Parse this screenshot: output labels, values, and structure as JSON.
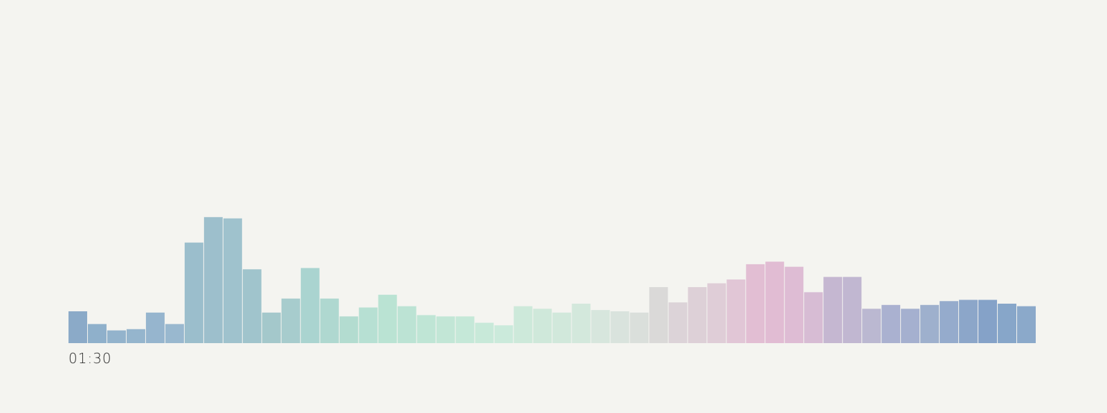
{
  "time_label": "01:30",
  "chart_data": {
    "type": "bar",
    "title": "",
    "xlabel": "",
    "ylabel": "",
    "grid": false,
    "legend": "none",
    "ylim": [
      0,
      100
    ],
    "values": [
      25,
      15,
      10,
      11,
      24,
      15,
      79,
      99,
      98,
      58,
      24,
      35,
      59,
      35,
      21,
      28,
      38,
      29,
      22,
      21,
      21,
      16,
      14,
      29,
      27,
      24,
      31,
      26,
      25,
      24,
      44,
      32,
      44,
      47,
      50,
      62,
      64,
      60,
      40,
      52,
      52,
      27,
      30,
      27,
      30,
      33,
      34,
      34,
      31,
      29
    ],
    "colors": [
      "#8baac8",
      "#8fb0cb",
      "#93b3cc",
      "#95b5cd",
      "#96b5ce",
      "#99b8cf",
      "#9bbecc",
      "#9dbfcc",
      "#9fc2cd",
      "#a0c4cc",
      "#a4c8cb",
      "#a7cccd",
      "#aad4d0",
      "#afd8d0",
      "#b3dcd0",
      "#b7e0d3",
      "#bae3d3",
      "#bce3d4",
      "#bfe5d5",
      "#c2e6d6",
      "#c5e8d8",
      "#c8e9d9",
      "#cbeadb",
      "#cde9da",
      "#cfe8da",
      "#d1e8db",
      "#d3e8dc",
      "#d7e6dd",
      "#d9e3dd",
      "#dadfdb",
      "#dad9d8",
      "#dcd3d8",
      "#ddd0d7",
      "#dfcdd7",
      "#e1c6d6",
      "#e2bed3",
      "#e1bcd3",
      "#debcd4",
      "#d7bcd4",
      "#c5b7d1",
      "#c1b7d1",
      "#bbb8d1",
      "#aab1d0",
      "#a5b0cf",
      "#9eb0cd",
      "#95abcc",
      "#8ca6c9",
      "#85a2c8",
      "#87a6c9",
      "#8ba9ca"
    ]
  }
}
